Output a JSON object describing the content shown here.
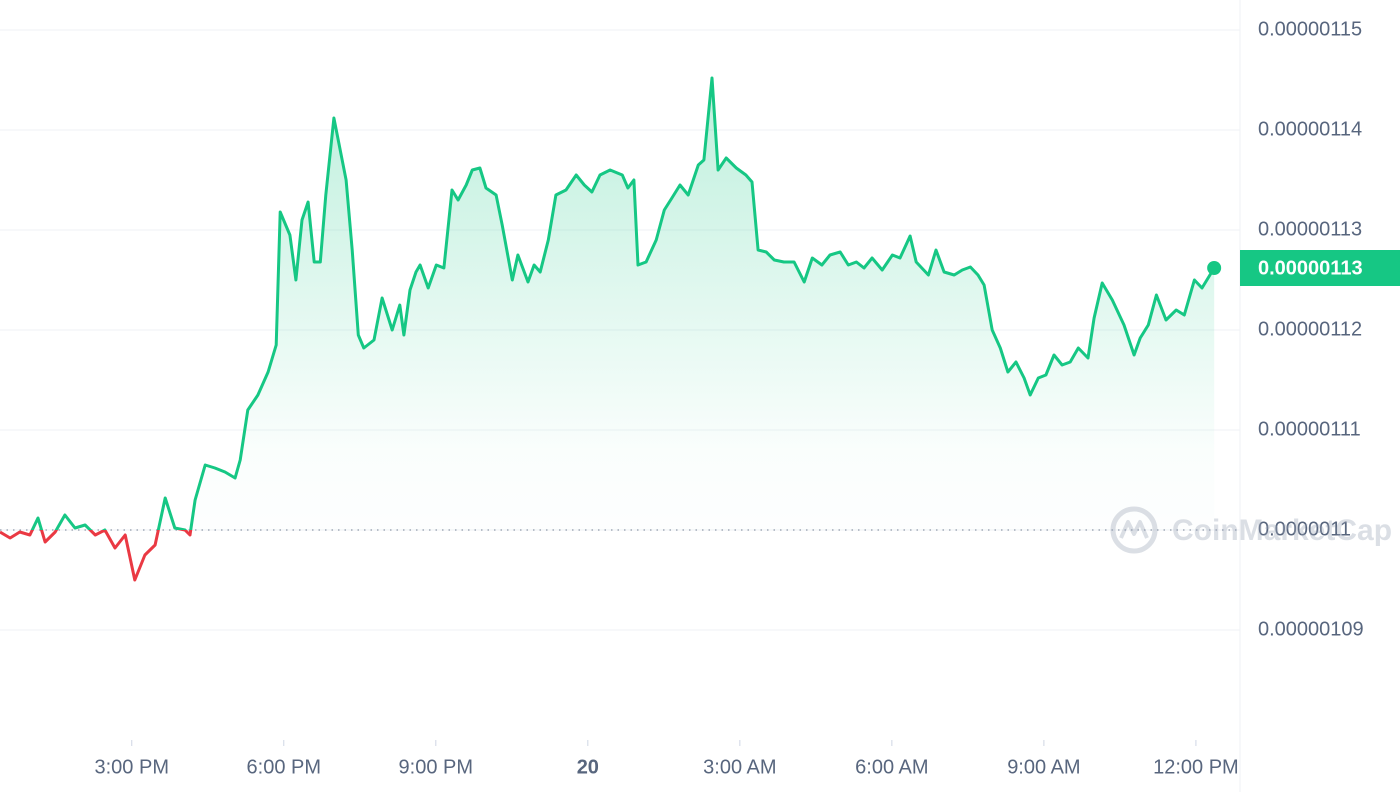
{
  "chart_data": {
    "type": "line",
    "x": [
      12.4,
      12.6,
      12.79,
      12.99,
      13.15,
      13.29,
      13.49,
      13.68,
      13.88,
      14.08,
      14.28,
      14.47,
      14.67,
      14.87,
      15.06,
      15.26,
      15.46,
      15.66,
      15.85,
      16.05,
      16.15,
      16.25,
      16.45,
      16.64,
      16.84,
      17.04,
      17.14,
      17.29,
      17.49,
      17.69,
      17.85,
      17.93,
      18.12,
      18.24,
      18.36,
      18.48,
      18.6,
      18.72,
      18.83,
      18.99,
      19.23,
      19.35,
      19.47,
      19.58,
      19.78,
      19.94,
      20.14,
      20.29,
      20.37,
      20.49,
      20.61,
      20.69,
      20.85,
      21.01,
      21.16,
      21.32,
      21.44,
      21.6,
      21.72,
      21.87,
      21.99,
      22.19,
      22.31,
      22.51,
      22.62,
      22.82,
      22.94,
      23.06,
      23.22,
      23.37,
      23.57,
      23.77,
      23.93,
      24.08,
      24.24,
      24.44,
      24.68,
      24.79,
      24.91,
      24.99,
      25.15,
      25.35,
      25.51,
      25.66,
      25.82,
      25.98,
      26.18,
      26.29,
      26.45,
      26.57,
      26.73,
      26.93,
      27.12,
      27.24,
      27.36,
      27.52,
      27.68,
      27.87,
      28.07,
      28.27,
      28.43,
      28.62,
      28.78,
      28.98,
      29.14,
      29.3,
      29.45,
      29.61,
      29.81,
      30.01,
      30.16,
      30.36,
      30.48,
      30.72,
      30.87,
      31.03,
      31.23,
      31.39,
      31.55,
      31.7,
      31.82,
      31.98,
      32.14,
      32.29,
      32.45,
      32.61,
      32.73,
      32.89,
      33.04,
      33.2,
      33.36,
      33.52,
      33.68,
      33.87,
      33.99,
      34.15,
      34.35,
      34.58,
      34.78,
      34.9,
      35.06,
      35.22,
      35.41,
      35.61,
      35.77,
      35.97,
      36.12,
      36.36
    ],
    "series": [
      {
        "color": "#16c784",
        "down_color": "#ea3943",
        "values": [
          1.0998e-06,
          1.0992e-06,
          1.0998e-06,
          1.0995e-06,
          1.1012e-06,
          1.0988e-06,
          1.0998e-06,
          1.1015e-06,
          1.1002e-06,
          1.1005e-06,
          1.0995e-06,
          1.1e-06,
          1.0982e-06,
          1.0995e-06,
          1.095e-06,
          1.0975e-06,
          1.0985e-06,
          1.1032e-06,
          1.1002e-06,
          1.1e-06,
          1.0995e-06,
          1.103e-06,
          1.1065e-06,
          1.1062e-06,
          1.1058e-06,
          1.1052e-06,
          1.107e-06,
          1.112e-06,
          1.1135e-06,
          1.1158e-06,
          1.1185e-06,
          1.1318e-06,
          1.1295e-06,
          1.125e-06,
          1.131e-06,
          1.1328e-06,
          1.1268e-06,
          1.1268e-06,
          1.1335e-06,
          1.1412e-06,
          1.135e-06,
          1.128e-06,
          1.1195e-06,
          1.1182e-06,
          1.119e-06,
          1.1232e-06,
          1.12e-06,
          1.1225e-06,
          1.1195e-06,
          1.124e-06,
          1.1258e-06,
          1.1265e-06,
          1.1242e-06,
          1.1265e-06,
          1.1262e-06,
          1.134e-06,
          1.133e-06,
          1.1345e-06,
          1.136e-06,
          1.1362e-06,
          1.1342e-06,
          1.1335e-06,
          1.1305e-06,
          1.125e-06,
          1.1275e-06,
          1.1248e-06,
          1.1265e-06,
          1.1258e-06,
          1.129e-06,
          1.1335e-06,
          1.134e-06,
          1.1355e-06,
          1.1345e-06,
          1.1338e-06,
          1.1355e-06,
          1.136e-06,
          1.1355e-06,
          1.1342e-06,
          1.135e-06,
          1.1265e-06,
          1.1268e-06,
          1.129e-06,
          1.132e-06,
          1.1332e-06,
          1.1345e-06,
          1.1335e-06,
          1.1365e-06,
          1.137e-06,
          1.1452e-06,
          1.136e-06,
          1.1372e-06,
          1.1362e-06,
          1.1355e-06,
          1.1348e-06,
          1.128e-06,
          1.1278e-06,
          1.127e-06,
          1.1268e-06,
          1.1268e-06,
          1.1248e-06,
          1.1272e-06,
          1.1265e-06,
          1.1275e-06,
          1.1278e-06,
          1.1265e-06,
          1.1268e-06,
          1.1262e-06,
          1.1272e-06,
          1.126e-06,
          1.1275e-06,
          1.1272e-06,
          1.1294e-06,
          1.1268e-06,
          1.1255e-06,
          1.128e-06,
          1.1258e-06,
          1.1255e-06,
          1.126e-06,
          1.1263e-06,
          1.1255e-06,
          1.1245e-06,
          1.12e-06,
          1.1182e-06,
          1.1158e-06,
          1.1168e-06,
          1.1152e-06,
          1.1135e-06,
          1.1152e-06,
          1.1155e-06,
          1.1175e-06,
          1.1165e-06,
          1.1168e-06,
          1.1182e-06,
          1.1172e-06,
          1.1212e-06,
          1.1247e-06,
          1.123e-06,
          1.1205e-06,
          1.1175e-06,
          1.1192e-06,
          1.1205e-06,
          1.1235e-06,
          1.121e-06,
          1.122e-06,
          1.1215e-06,
          1.125e-06,
          1.1242e-06,
          1.1262e-06
        ]
      }
    ],
    "current_label": "0.00000113",
    "open_price": 1.1e-06,
    "xlim": [
      12.4,
      36.87
    ],
    "ylim": [
      1.079e-06,
      1.153e-06
    ],
    "xticks": [
      {
        "value": 15,
        "label": "3:00 PM"
      },
      {
        "value": 18,
        "label": "6:00 PM"
      },
      {
        "value": 21,
        "label": "9:00 PM"
      },
      {
        "value": 24,
        "label": "20"
      },
      {
        "value": 27,
        "label": "3:00 AM"
      },
      {
        "value": 30,
        "label": "6:00 AM"
      },
      {
        "value": 33,
        "label": "9:00 AM"
      },
      {
        "value": 36,
        "label": "12:00 PM"
      }
    ],
    "yticks": [
      1.09e-06,
      1.1e-06,
      1.11e-06,
      1.12e-06,
      1.13e-06,
      1.14e-06,
      1.15e-06
    ],
    "grid": true,
    "watermark": "CoinMarketCap"
  }
}
